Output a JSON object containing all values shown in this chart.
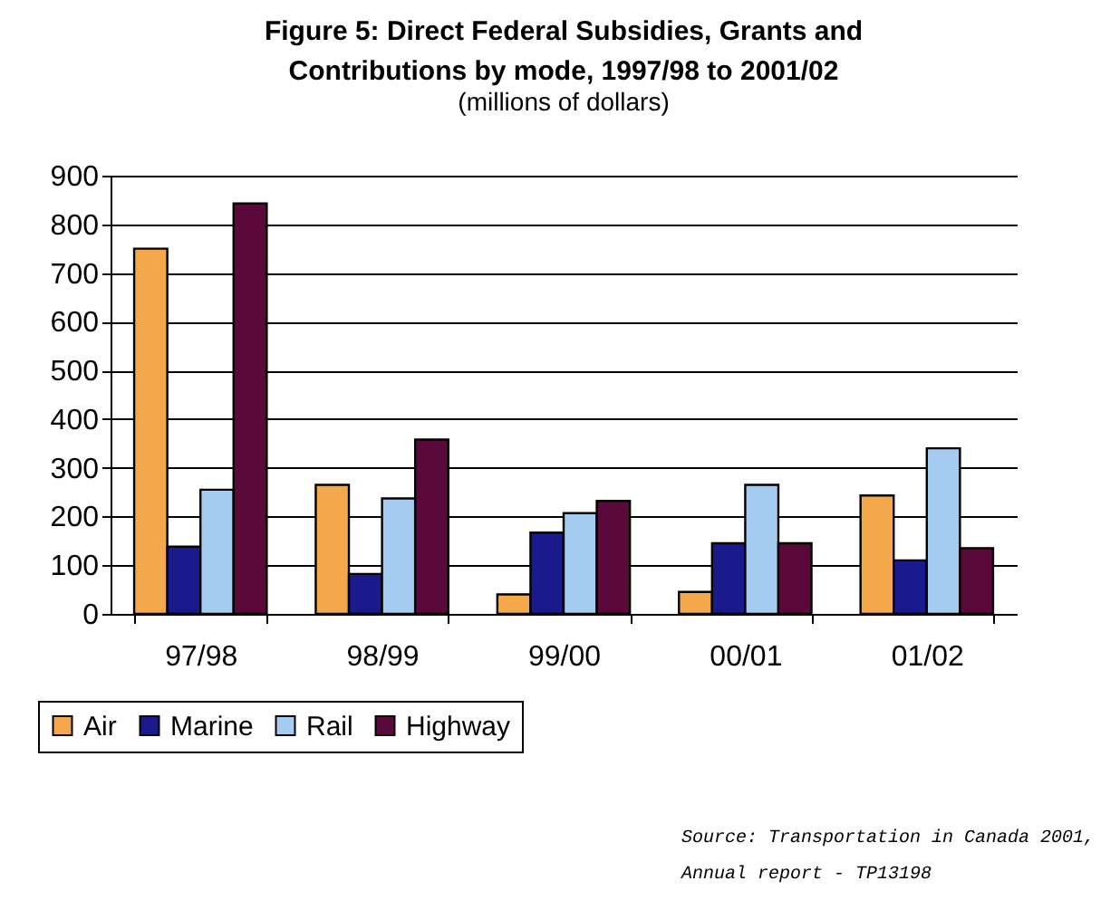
{
  "chart_data": {
    "type": "bar",
    "title": "Figure 5: Direct Federal Subsidies, Grants and Contributions by mode, 1997/98 to 2001/02",
    "subtitle": "(millions of dollars)",
    "categories": [
      "97/98",
      "98/99",
      "99/00",
      "00/01",
      "01/02"
    ],
    "series": [
      {
        "name": "Air",
        "color": "#f4a84c",
        "values": [
          750,
          265,
          40,
          45,
          243
        ]
      },
      {
        "name": "Marine",
        "color": "#1a1a8c",
        "values": [
          138,
          82,
          167,
          145,
          110
        ]
      },
      {
        "name": "Rail",
        "color": "#a6cbf0",
        "values": [
          255,
          237,
          207,
          265,
          340
        ]
      },
      {
        "name": "Highway",
        "color": "#5a0a3a",
        "values": [
          843,
          358,
          232,
          145,
          135
        ]
      }
    ],
    "ylim": [
      0,
      900
    ],
    "yticks": [
      0,
      100,
      200,
      300,
      400,
      500,
      600,
      700,
      800,
      900
    ],
    "grid": "y",
    "legend": "bottom left",
    "annotations": [
      "Source: Transportation in Canada 2001,",
      "Annual report - TP13198"
    ]
  }
}
